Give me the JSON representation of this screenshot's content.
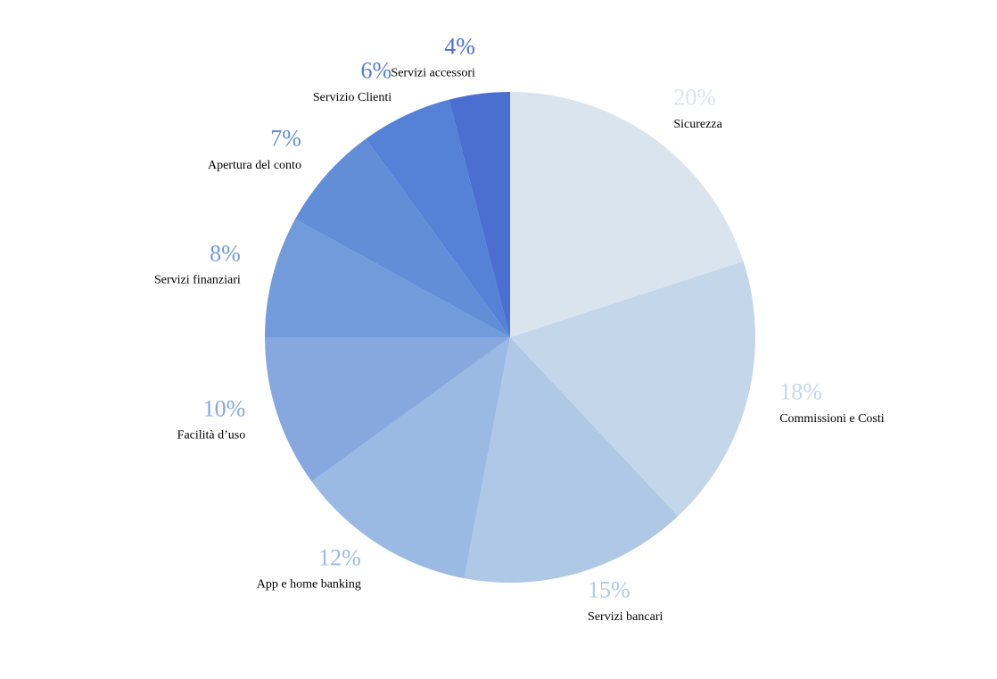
{
  "chart_data": {
    "type": "pie",
    "categories": [
      "Sicurezza",
      "Commissioni e Costi",
      "Servizi bancari",
      "App e home banking",
      "Facilità d’uso",
      "Servizi finanziari",
      "Apertura del conto",
      "Servizio Clienti",
      "Servizi accessori"
    ],
    "values": [
      20,
      18,
      15,
      12,
      10,
      8,
      7,
      6,
      4
    ],
    "value_labels": [
      "20%",
      "18%",
      "15%",
      "12%",
      "10%",
      "8%",
      "7%",
      "6%",
      "4%"
    ],
    "colors": [
      "#dae4ef",
      "#c3d6ea",
      "#aec8e6",
      "#9ab9e3",
      "#86a8df",
      "#729bdb",
      "#628ed8",
      "#5581d6",
      "#4a6fd0"
    ]
  }
}
